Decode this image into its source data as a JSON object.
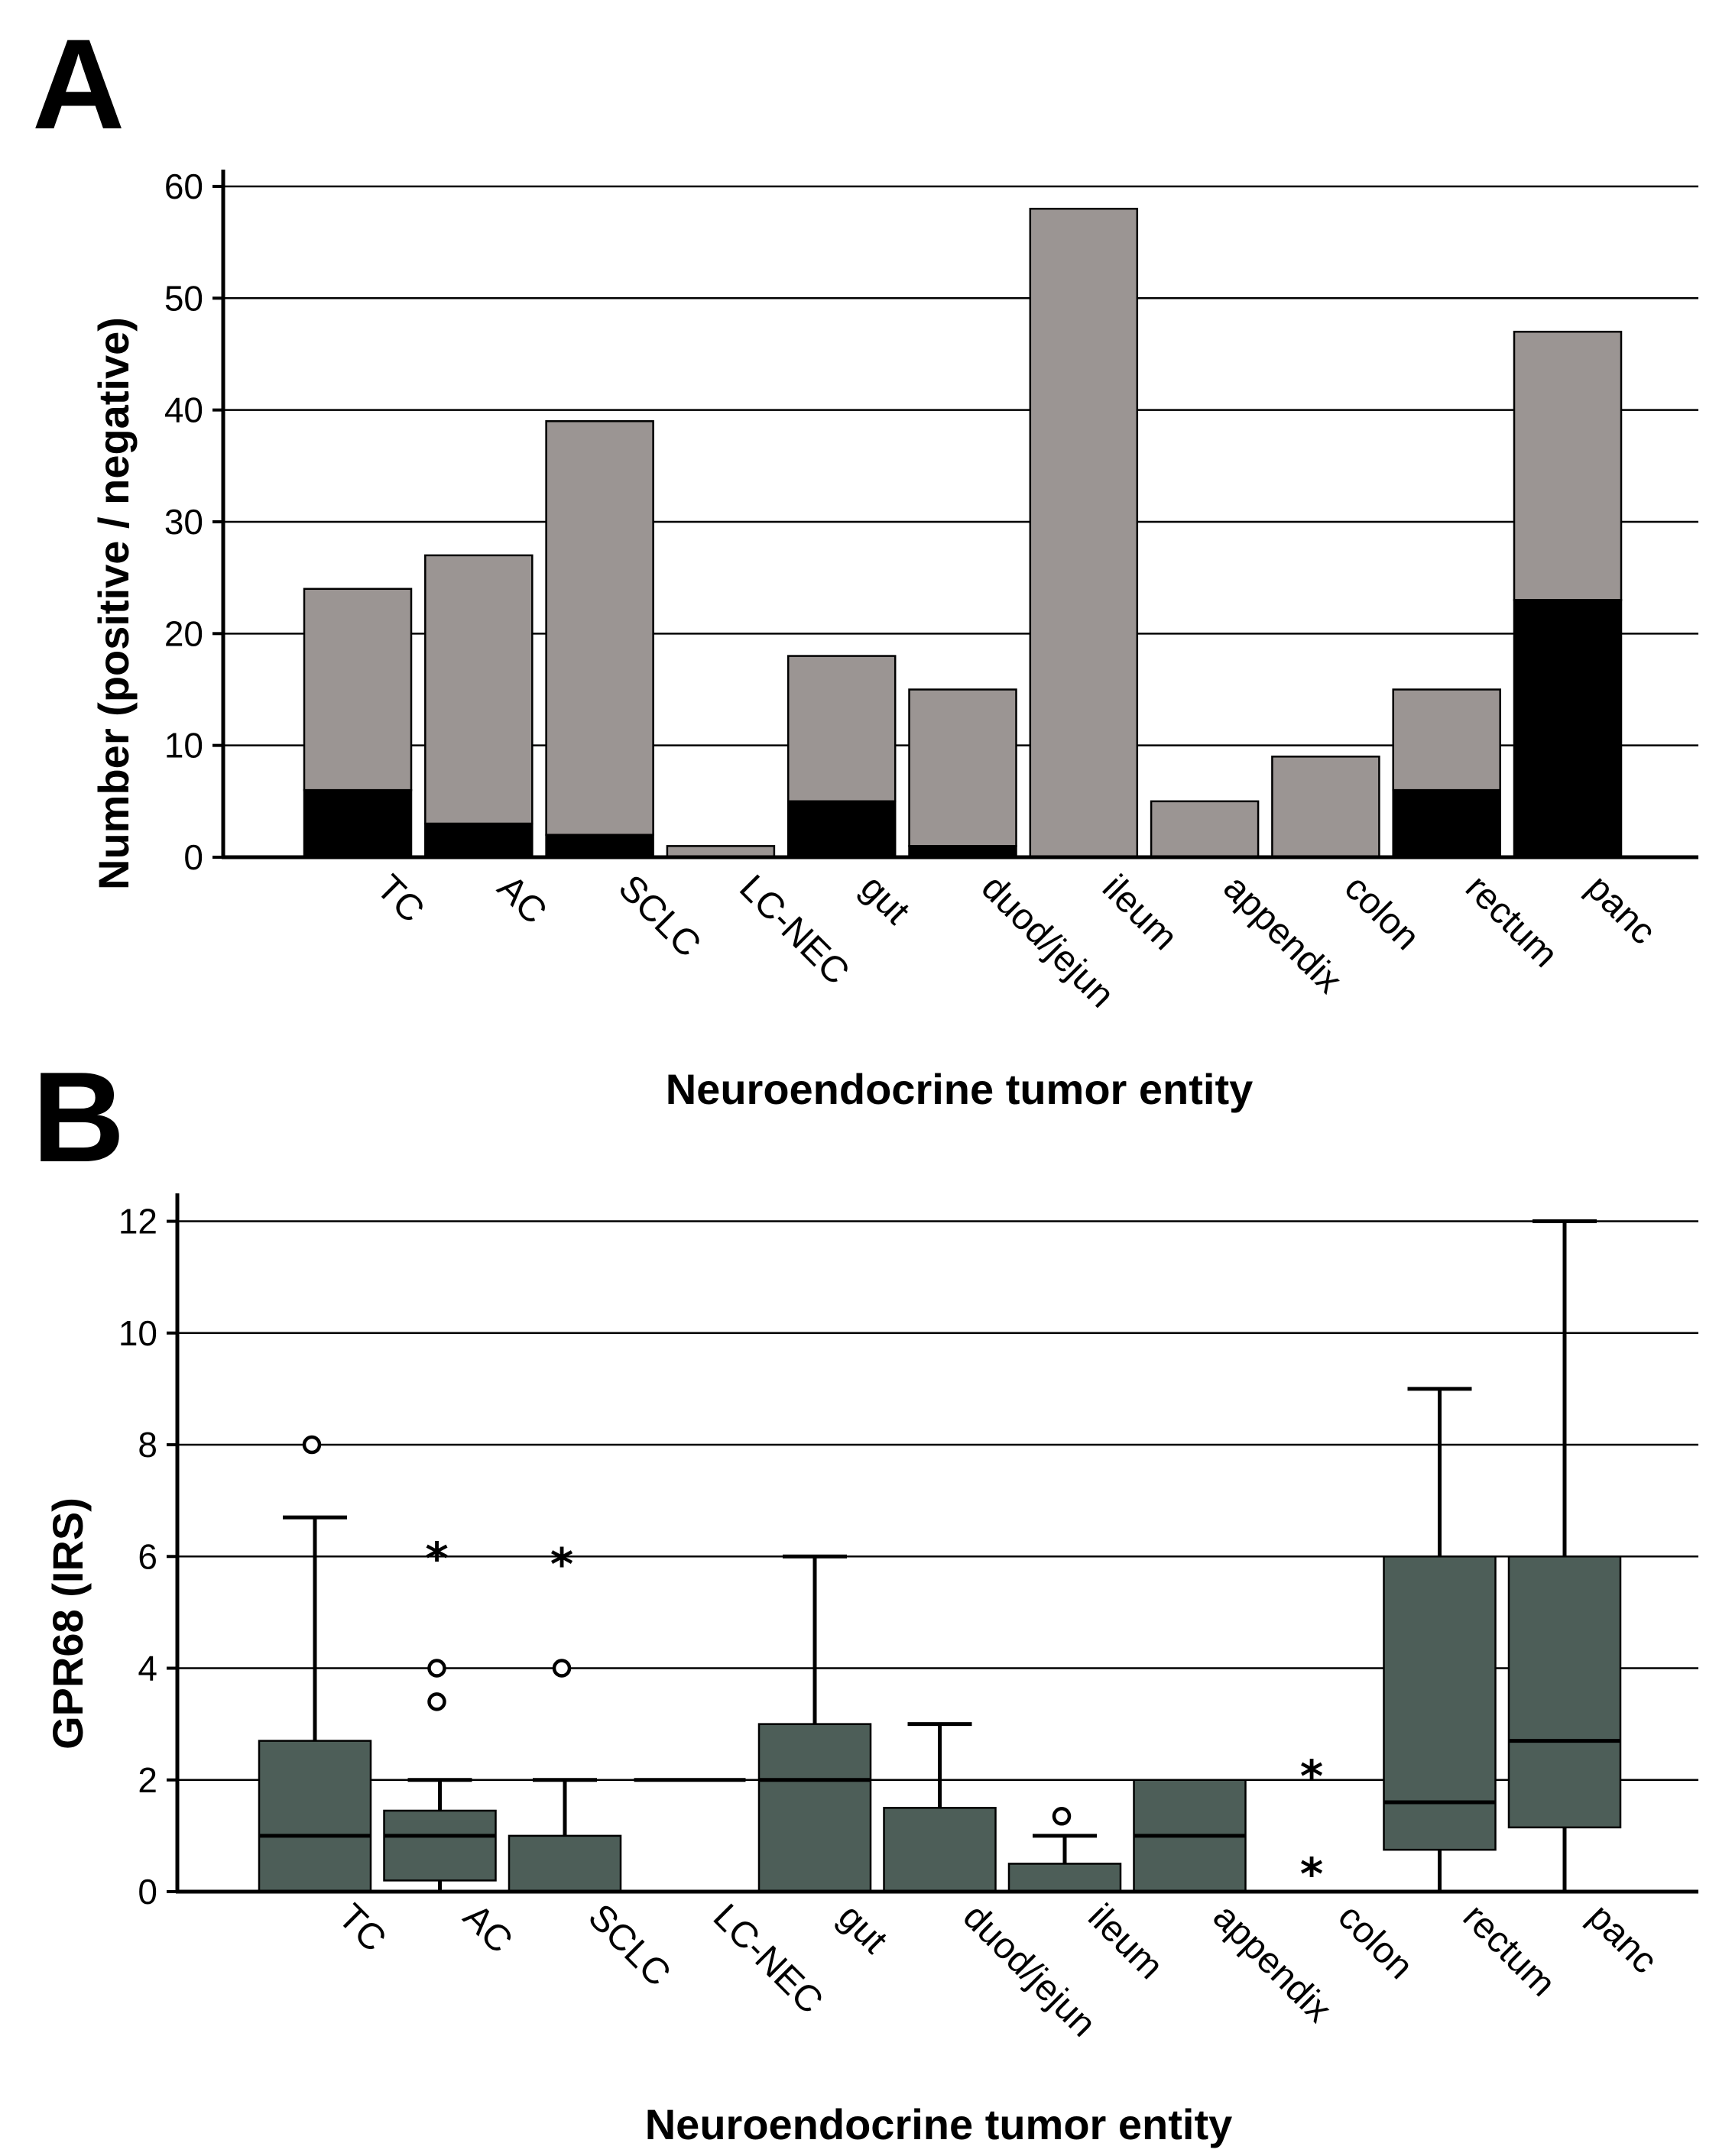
{
  "panels": [
    {
      "letter": "A"
    },
    {
      "letter": "B"
    }
  ],
  "colors": {
    "bar_gray": "#9b9593",
    "bar_black": "#000000",
    "box_fill": "#4d5e58",
    "stroke": "#000000"
  },
  "chart_data": [
    {
      "type": "bar",
      "stacked": true,
      "categories": [
        "TC",
        "AC",
        "SCLC",
        "LC-NEC",
        "gut",
        "duod/jejun",
        "ileum",
        "appendix",
        "colon",
        "rectum",
        "panc"
      ],
      "series": [
        {
          "values": [
            6,
            3,
            2,
            0,
            5,
            1,
            0,
            0,
            0,
            6,
            23
          ]
        },
        {
          "values": [
            18,
            24,
            37,
            1,
            13,
            14,
            58,
            5,
            9,
            9,
            24
          ]
        }
      ],
      "totals": [
        24,
        27,
        39,
        1,
        18,
        15,
        58,
        5,
        9,
        15,
        47
      ],
      "ylabel": "Number (positive / negative)",
      "xlabel": "Neuroendocrine tumor entity",
      "ylim": [
        0,
        60
      ],
      "yticks": [
        0,
        10,
        20,
        30,
        40,
        50,
        60
      ],
      "grid": true
    },
    {
      "type": "box",
      "categories": [
        "TC",
        "AC",
        "SCLC",
        "LC-NEC",
        "gut",
        "duod/jejun",
        "ileum",
        "appendix",
        "colon",
        "rectum",
        "panc"
      ],
      "boxes": [
        {
          "q1": 0,
          "median": 1,
          "q3": 2.7,
          "whisker_low": 0,
          "whisker_high": 6.7,
          "outliers": [
            8
          ],
          "extremes": []
        },
        {
          "q1": 0.2,
          "median": 1,
          "q3": 1.45,
          "whisker_low": 0,
          "whisker_high": 2,
          "outliers": [
            3.4,
            4
          ],
          "extremes": [
            6.1
          ]
        },
        {
          "q1": 0,
          "median": 0,
          "q3": 1,
          "whisker_low": 0,
          "whisker_high": 2,
          "outliers": [
            4
          ],
          "extremes": [
            6
          ]
        },
        {
          "q1": 2,
          "median": 2,
          "q3": 2,
          "whisker_low": 2,
          "whisker_high": 2,
          "outliers": [],
          "extremes": []
        },
        {
          "q1": 0,
          "median": 2,
          "q3": 3,
          "whisker_low": 0,
          "whisker_high": 6,
          "outliers": [],
          "extremes": []
        },
        {
          "q1": 0,
          "median": 0,
          "q3": 1.5,
          "whisker_low": 0,
          "whisker_high": 3,
          "outliers": [],
          "extremes": []
        },
        {
          "q1": 0,
          "median": 0,
          "q3": 0.5,
          "whisker_low": 0,
          "whisker_high": 1,
          "outliers": [
            1.35
          ],
          "extremes": []
        },
        {
          "q1": 0,
          "median": 1,
          "q3": 2,
          "whisker_low": 0,
          "whisker_high": 2,
          "outliers": [],
          "extremes": []
        },
        {
          "q1": 0,
          "median": 0,
          "q3": 0,
          "whisker_low": 0,
          "whisker_high": 0,
          "outliers": [],
          "extremes": [
            2.2,
            0.45
          ]
        },
        {
          "q1": 0.75,
          "median": 1.6,
          "q3": 6,
          "whisker_low": 0,
          "whisker_high": 9,
          "outliers": [],
          "extremes": []
        },
        {
          "q1": 1.15,
          "median": 2.7,
          "q3": 6,
          "whisker_low": 0,
          "whisker_high": 12,
          "outliers": [],
          "extremes": []
        }
      ],
      "ylabel": "GPR68 (IRS)",
      "xlabel": "Neuroendocrine tumor entity",
      "ylim": [
        0,
        12.5
      ],
      "yticks": [
        0,
        2,
        4,
        6,
        8,
        10,
        12
      ],
      "grid": true
    }
  ]
}
